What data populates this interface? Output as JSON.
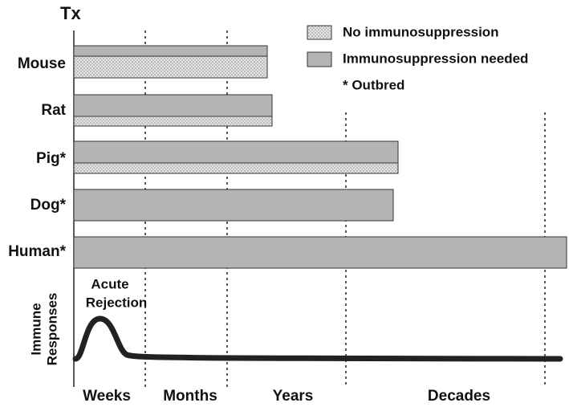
{
  "title": "Tx",
  "rows": [
    {
      "label": "Mouse"
    },
    {
      "label": "Rat"
    },
    {
      "label": "Pig*"
    },
    {
      "label": "Dog*"
    },
    {
      "label": "Human*"
    }
  ],
  "legend": [
    "No immunosuppression",
    "Immunosuppression needed",
    "* Outbred"
  ],
  "y_axis_label": [
    "Immune",
    "Responses"
  ],
  "annotation": [
    "Acute",
    "Rejection"
  ],
  "time_axis": [
    "Weeks",
    "Months",
    "Years",
    "Decades"
  ]
}
